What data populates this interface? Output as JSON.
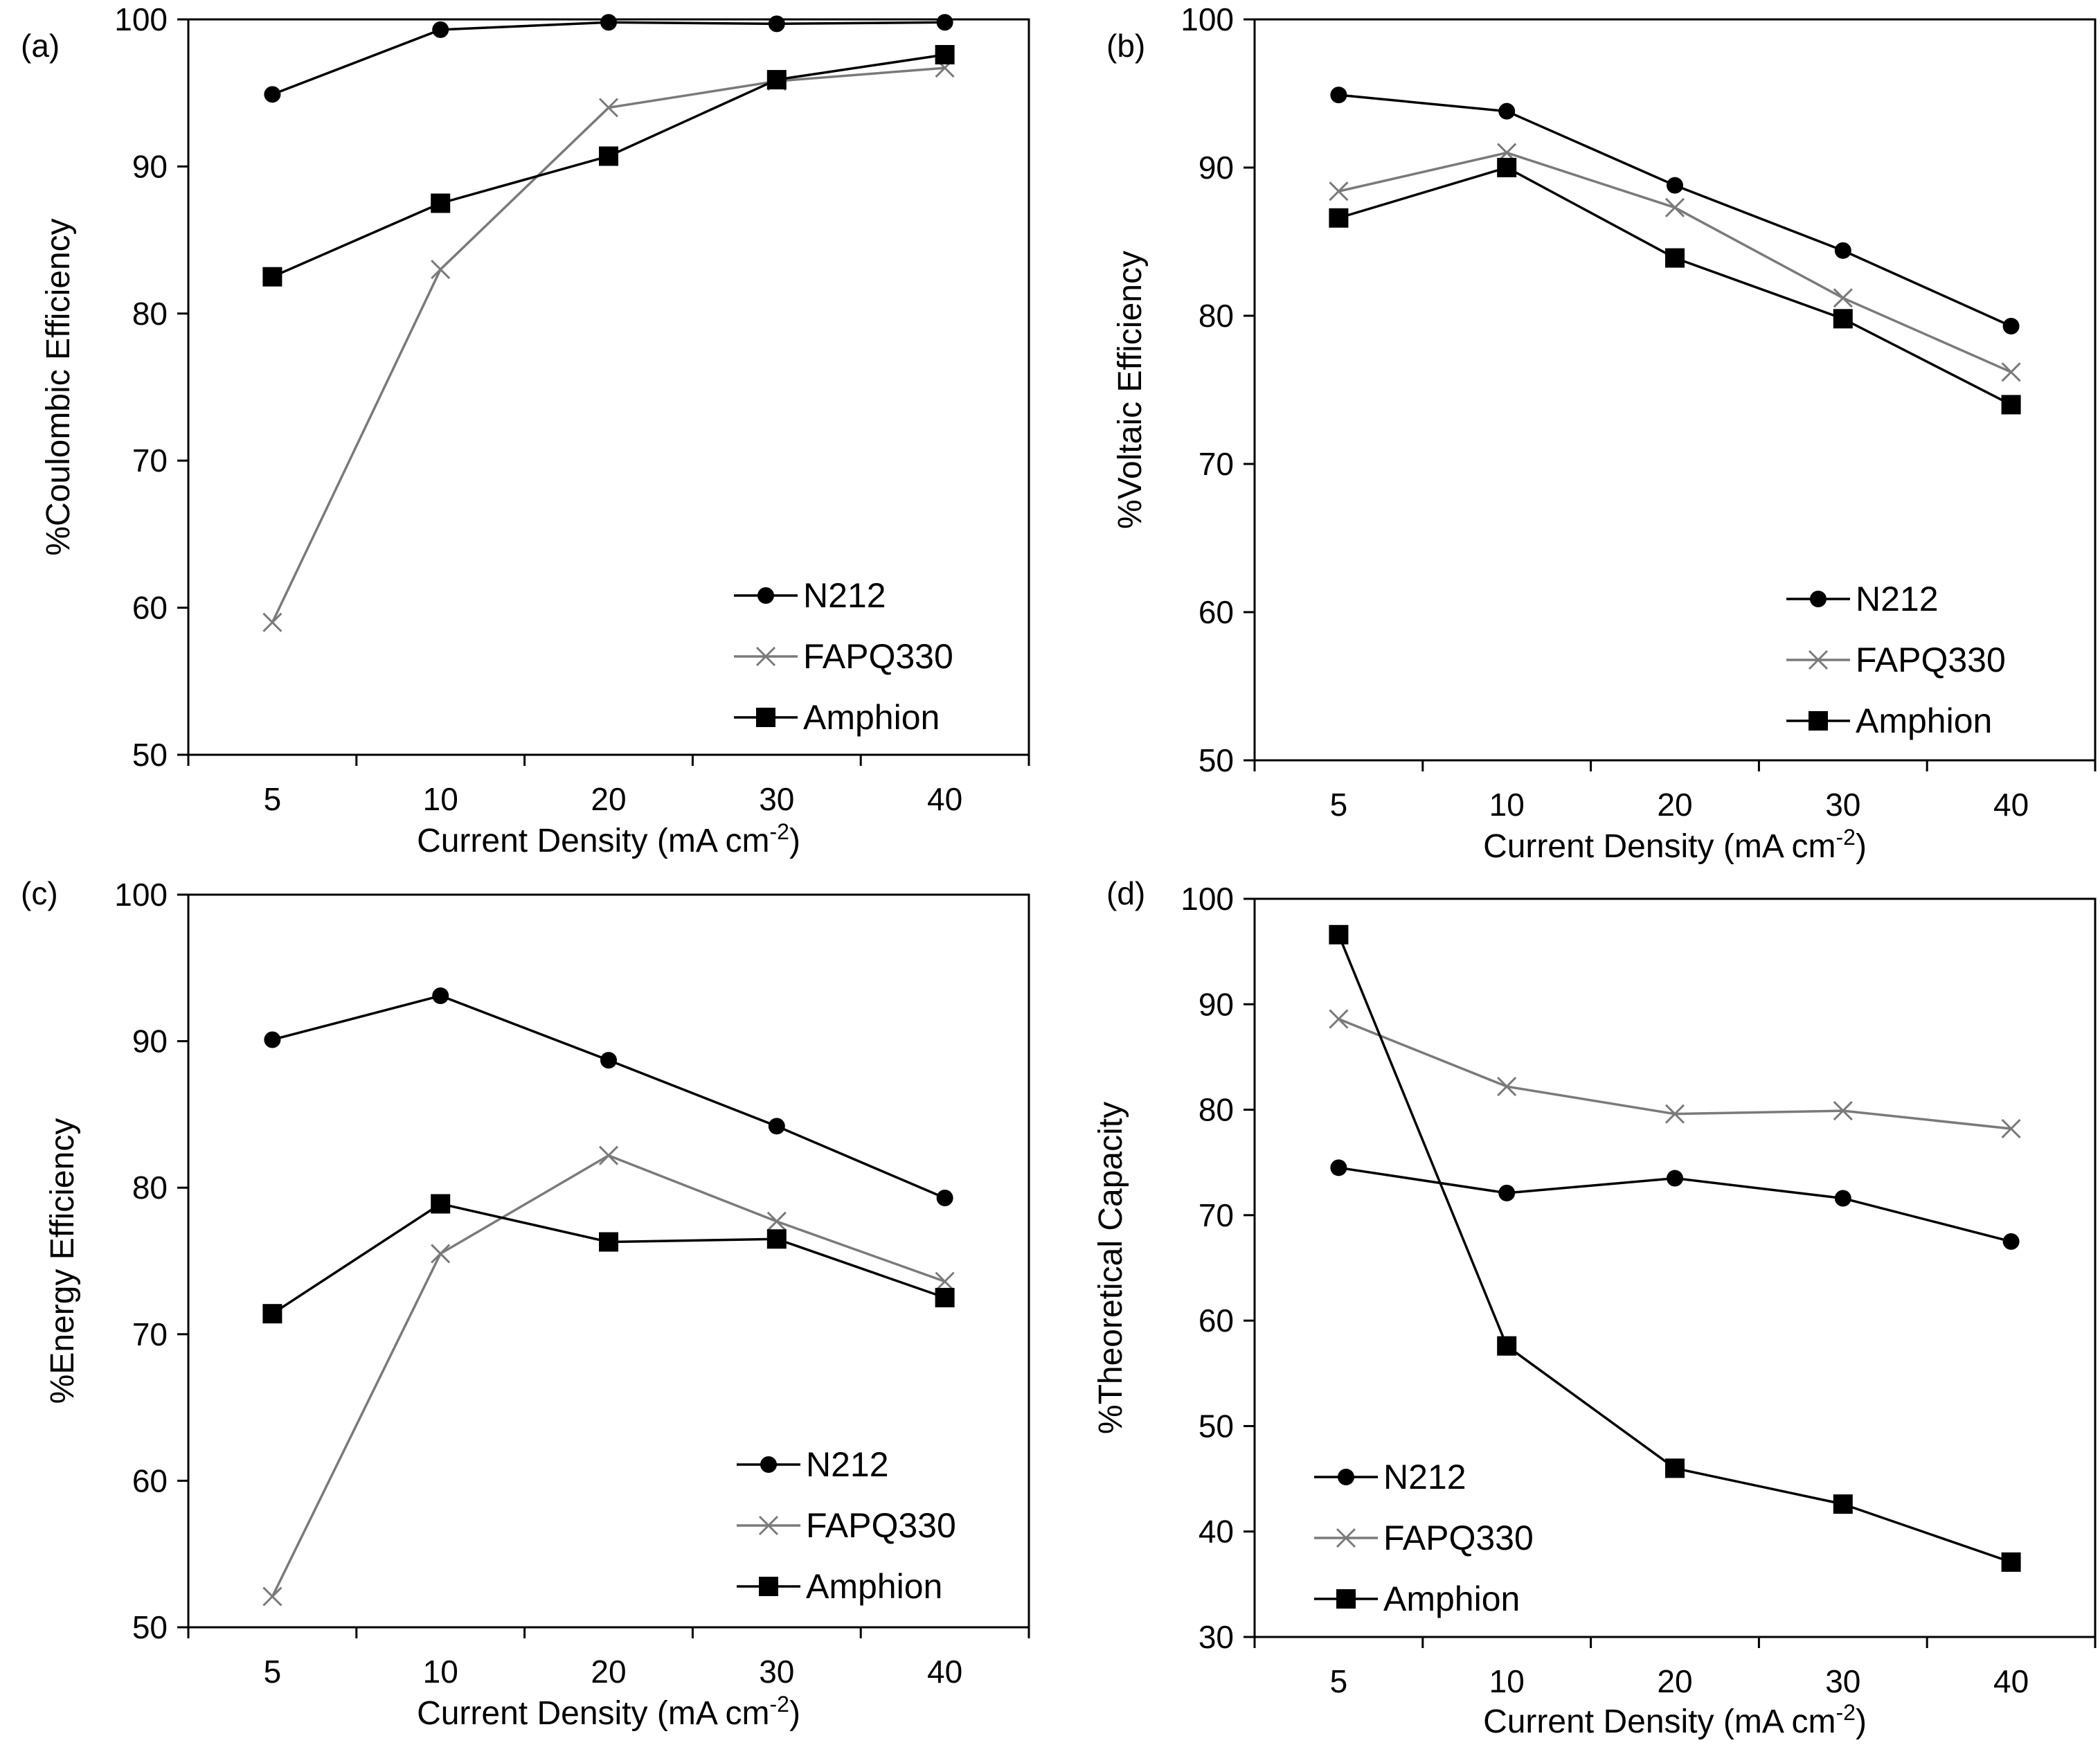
{
  "colors": {
    "n212": "#000000",
    "fapq330": "#7a7a7a",
    "amphion": "#000000",
    "axis": "#000000"
  },
  "chart_data": [
    {
      "panel_label": "(a)",
      "type": "line",
      "categories": [
        "5",
        "10",
        "20",
        "30",
        "40"
      ],
      "xlabel": "Current Density (mA cm",
      "xlabel_sup": "-2",
      "xlabel_end": ")",
      "ylabel": "%Coulombic Efficiency",
      "ylim": [
        50,
        100
      ],
      "yticks": [
        "50",
        "60",
        "70",
        "80",
        "90",
        "100"
      ],
      "legend_position": "bottom-right",
      "series": [
        {
          "name": "N212",
          "marker": "circle",
          "values": [
            94.9,
            99.3,
            99.8,
            99.7,
            99.8
          ]
        },
        {
          "name": "FAPQ330",
          "marker": "x",
          "values": [
            59.0,
            83.0,
            94.0,
            95.8,
            96.7
          ]
        },
        {
          "name": "Amphion",
          "marker": "square",
          "values": [
            82.5,
            87.5,
            90.7,
            95.9,
            97.6
          ]
        }
      ]
    },
    {
      "panel_label": "(b)",
      "type": "line",
      "categories": [
        "5",
        "10",
        "20",
        "30",
        "40"
      ],
      "xlabel": "Current Density (mA cm",
      "xlabel_sup": "-2",
      "xlabel_end": ")",
      "ylabel": "%Voltaic Efficiency",
      "ylim": [
        50,
        100
      ],
      "yticks": [
        "50",
        "60",
        "70",
        "80",
        "90",
        "100"
      ],
      "legend_position": "bottom-right",
      "series": [
        {
          "name": "N212",
          "marker": "circle",
          "values": [
            94.9,
            93.8,
            88.8,
            84.4,
            79.3
          ]
        },
        {
          "name": "FAPQ330",
          "marker": "x",
          "values": [
            88.4,
            91.0,
            87.3,
            81.2,
            76.2
          ]
        },
        {
          "name": "Amphion",
          "marker": "square",
          "values": [
            86.6,
            90.0,
            83.9,
            79.8,
            74.0
          ]
        }
      ]
    },
    {
      "panel_label": "(c)",
      "type": "line",
      "categories": [
        "5",
        "10",
        "20",
        "30",
        "40"
      ],
      "xlabel": "Current Density (mA cm",
      "xlabel_sup": "-2",
      "xlabel_end": ")",
      "ylabel": "%Energy Efficiency",
      "ylim": [
        50,
        100
      ],
      "yticks": [
        "50",
        "60",
        "70",
        "80",
        "90",
        "100"
      ],
      "legend_position": "bottom-right",
      "series": [
        {
          "name": "N212",
          "marker": "circle",
          "values": [
            90.1,
            93.1,
            88.7,
            84.2,
            79.3
          ]
        },
        {
          "name": "FAPQ330",
          "marker": "x",
          "values": [
            52.1,
            75.5,
            82.2,
            77.7,
            73.6
          ]
        },
        {
          "name": "Amphion",
          "marker": "square",
          "values": [
            71.4,
            78.9,
            76.3,
            76.5,
            72.5
          ]
        }
      ]
    },
    {
      "panel_label": "(d)",
      "type": "line",
      "categories": [
        "5",
        "10",
        "20",
        "30",
        "40"
      ],
      "xlabel": "Current Density (mA cm",
      "xlabel_sup": "-2",
      "xlabel_end": ")",
      "ylabel": "%Theoretical Capacity",
      "ylim": [
        30,
        100
      ],
      "yticks": [
        "30",
        "40",
        "50",
        "60",
        "70",
        "80",
        "90",
        "100"
      ],
      "legend_position": "bottom-left",
      "series": [
        {
          "name": "N212",
          "marker": "circle",
          "values": [
            74.5,
            72.1,
            73.5,
            71.6,
            67.5
          ]
        },
        {
          "name": "FAPQ330",
          "marker": "x",
          "values": [
            88.6,
            82.2,
            79.6,
            79.9,
            78.2
          ]
        },
        {
          "name": "Amphion",
          "marker": "square",
          "values": [
            96.6,
            57.6,
            46.0,
            42.6,
            37.1
          ]
        }
      ]
    }
  ]
}
